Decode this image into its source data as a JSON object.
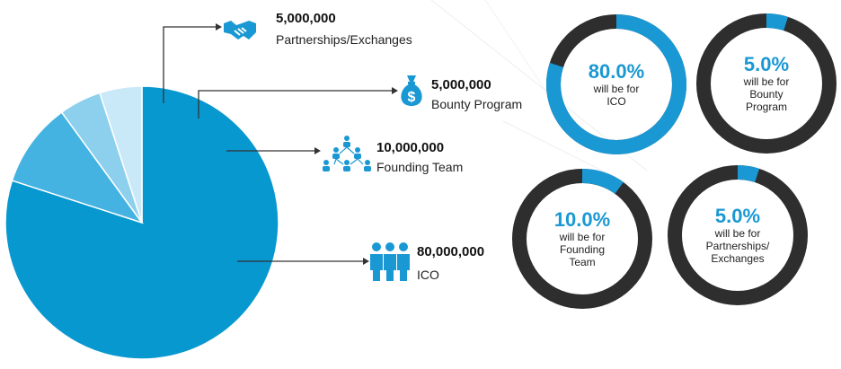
{
  "chart_data": {
    "type": "pie",
    "categories": [
      "ICO",
      "Founding Team",
      "Bounty Program",
      "Partnerships/Exchanges"
    ],
    "values": [
      80000000,
      10000000,
      5000000,
      5000000
    ],
    "slice_colors": [
      "#0898d0",
      "#45b3e2",
      "#8cd0ee",
      "#c9e9f8"
    ],
    "labels": [
      {
        "amount": "5,000,000",
        "name": "Partnerships/Exchanges",
        "icon": "handshake-icon"
      },
      {
        "amount": "5,000,000",
        "name": "Bounty Program",
        "icon": "money-bag-icon"
      },
      {
        "amount": "10,000,000",
        "name": "Founding Team",
        "icon": "team-hierarchy-icon"
      },
      {
        "amount": "80,000,000",
        "name": "ICO",
        "icon": "group-people-icon"
      }
    ]
  },
  "donuts": [
    {
      "percent_text": "80.0%",
      "caption": "will be for ICO",
      "value": 0.8
    },
    {
      "percent_text": "5.0%",
      "caption": "will be for Bounty Program",
      "value": 0.05
    },
    {
      "percent_text": "10.0%",
      "caption": "will be for Founding Team",
      "value": 0.1
    },
    {
      "percent_text": "5.0%",
      "caption": "will be for Partnerships/ Exchanges",
      "value": 0.05
    }
  ],
  "colors": {
    "accent": "#1a98d3",
    "ring_dark": "#2e2e2e",
    "text": "#222222"
  }
}
